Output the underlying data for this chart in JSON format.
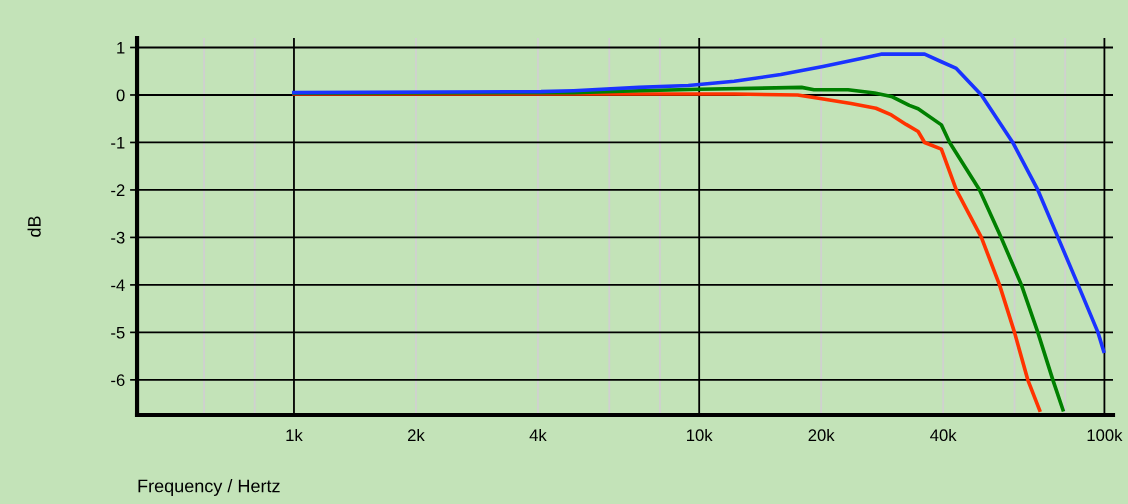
{
  "chart_data": {
    "type": "line",
    "xlabel": "Frequency / Hertz",
    "ylabel": "dB",
    "log": "x",
    "grid": "y",
    "marker": "none",
    "line_style": "solid",
    "xlim": [
      410,
      105000
    ],
    "ylim": [
      -6.74,
      1.2
    ],
    "xticks": [
      {
        "value": 1000,
        "label": "1k"
      },
      {
        "value": 2000,
        "label": "2k"
      },
      {
        "value": 4000,
        "label": "4k"
      },
      {
        "value": 10000,
        "label": "10k"
      },
      {
        "value": 20000,
        "label": "20k"
      },
      {
        "value": 40000,
        "label": "40k"
      },
      {
        "value": 100000,
        "label": "100k"
      }
    ],
    "yticks": [
      1,
      0,
      -1,
      -2,
      -3,
      -4,
      -5,
      -6
    ],
    "ref_lines": [
      {
        "axis": "x",
        "value": 1000,
        "color": "#000000"
      },
      {
        "axis": "x",
        "value": 10000,
        "color": "#000000"
      },
      {
        "axis": "x",
        "value": 100000,
        "color": "#000000"
      },
      {
        "axis": "x",
        "value": 600,
        "color": "#d0d0d0"
      },
      {
        "axis": "x",
        "value": 800,
        "color": "#d0d0d0"
      },
      {
        "axis": "x",
        "value": 2000,
        "color": "#d0d0d0"
      },
      {
        "axis": "x",
        "value": 4000,
        "color": "#d0d0d0"
      },
      {
        "axis": "x",
        "value": 6000,
        "color": "#d0d0d0"
      },
      {
        "axis": "x",
        "value": 8000,
        "color": "#d0d0d0"
      },
      {
        "axis": "x",
        "value": 20000,
        "color": "#d0d0d0"
      },
      {
        "axis": "x",
        "value": 40000,
        "color": "#d0d0d0"
      },
      {
        "axis": "x",
        "value": 60000,
        "color": "#d0d0d0"
      },
      {
        "axis": "x",
        "value": 80000,
        "color": "#d0d0d0"
      }
    ],
    "series": [
      {
        "color": "#ff3300",
        "x": [
          1000,
          4000,
          10000,
          12200,
          17500,
          19700,
          23700,
          27300,
          29800,
          32400,
          34700,
          36000,
          39600,
          43100,
          49700,
          55100,
          60000,
          64700,
          69200
        ],
        "values": [
          0.02,
          0.02,
          0.02,
          0.02,
          0,
          -0.07,
          -0.18,
          -0.28,
          -0.42,
          -0.62,
          -0.77,
          -1,
          -1.14,
          -2,
          -3,
          -4,
          -5,
          -6,
          -6.64
        ]
      },
      {
        "color": "#008000",
        "x": [
          1000,
          4900,
          7100,
          10000,
          17900,
          19200,
          23300,
          27100,
          29800,
          33000,
          34700,
          39600,
          41500,
          49200,
          55600,
          62400,
          68500,
          74600,
          79000
        ],
        "values": [
          0.04,
          0.05,
          0.09,
          0.12,
          0.16,
          0.11,
          0.11,
          0.04,
          -0.03,
          -0.22,
          -0.29,
          -0.63,
          -1,
          -2,
          -3,
          -4,
          -5,
          -6,
          -6.63
        ]
      },
      {
        "color": "#1a33ff",
        "x": [
          1000,
          4070,
          4900,
          7100,
          9400,
          12200,
          15900,
          20200,
          25100,
          28100,
          36000,
          39600,
          43100,
          49700,
          59400,
          68500,
          76800,
          86100,
          96400,
          99600
        ],
        "values": [
          0.05,
          0.07,
          0.09,
          0.16,
          0.2,
          0.29,
          0.43,
          0.6,
          0.77,
          0.86,
          0.86,
          0.7,
          0.56,
          0,
          -1,
          -2,
          -3,
          -4,
          -5,
          -5.4
        ]
      }
    ]
  }
}
